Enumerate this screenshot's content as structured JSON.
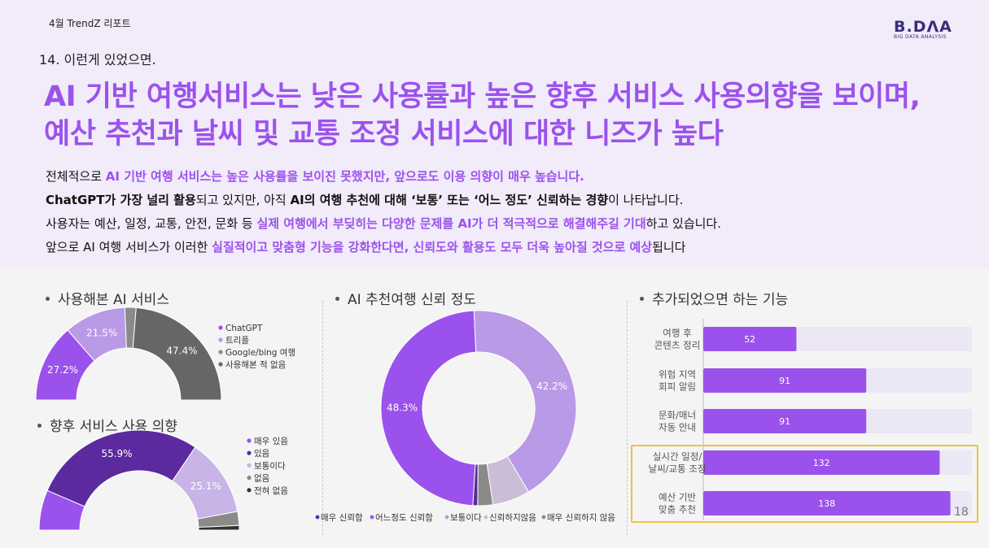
{
  "header": {
    "report_label": "4월 TrendZ 리포트",
    "logo_main": "B.DΛA",
    "logo_sub": "BIG DATA ANALYSIS",
    "section_number": "14. 이런게 있었으면.",
    "headline_line1": "AI 기반 여행서비스는 낮은 사용률과 높은 향후 서비스 사용의향을 보이며,",
    "headline_line2": "예산 추천과 날씨 및 교통 조정 서비스에 대한 니즈가 높다"
  },
  "summary": {
    "line1_a": "전체적으로 ",
    "line1_b": "AI 기반 여행 서비스는 높은 사용률을 보이진 못했지만, 앞으로도 이용 의향이 매우 높습니다.",
    "line2_a": "ChatGPT가 가장 널리 활용",
    "line2_b": "되고 있지만, 아직 ",
    "line2_c": "AI의 여행 추천에 대해 ‘보통’ 또는 ‘어느 정도’ 신뢰하는 경향",
    "line2_d": "이 나타납니다.",
    "line3_a": "사용자는 예산, 일정, 교통, 안전, 문화 등 ",
    "line3_b": "실제 여행에서 부딪히는 다양한 문제를 AI가 더 적극적으로 해결해주길 기대",
    "line3_c": "하고 있습니다.",
    "line4_a": "앞으로 AI 여행 서비스가 이러한 ",
    "line4_b": "실질적이고 맞춤형 기능을 강화한다면, 신뢰도와 활용도 모두 더욱 높아질 것으로 예상",
    "line4_c": "됩니다"
  },
  "panels": {
    "used_services_title": "사용해본 AI 서비스",
    "future_intent_title": "향후 서비스 사용 의향",
    "trust_title": "AI 추천여행 신뢰 정도",
    "features_title": "추가되었으면 하는 기능"
  },
  "page_number": "18",
  "chart_data": [
    {
      "id": "used_services",
      "type": "pie",
      "variant": "half-donut",
      "labels": [
        "ChatGPT",
        "트리플",
        "Google/bing 여행",
        "사용해본 적 없음"
      ],
      "values": [
        27.2,
        21.5,
        3.9,
        47.4
      ],
      "value_labels": [
        "27.2%",
        "21.5%",
        "",
        "47.4%"
      ],
      "colors": [
        "#9b52ec",
        "#b99ae6",
        "#8a8a8a",
        "#666666"
      ],
      "legend_position": "right"
    },
    {
      "id": "future_intent",
      "type": "pie",
      "variant": "half-donut",
      "labels": [
        "매우 있음",
        "있음",
        "보통이다",
        "없음",
        "전혀 없음"
      ],
      "values": [
        13.0,
        55.9,
        25.1,
        4.5,
        1.5
      ],
      "value_labels": [
        "",
        "55.9%",
        "25.1%",
        "",
        ""
      ],
      "colors": [
        "#9b52ec",
        "#5b2a9e",
        "#c8b4e6",
        "#8a8a8a",
        "#333333"
      ],
      "legend_position": "right"
    },
    {
      "id": "trust",
      "type": "pie",
      "variant": "donut",
      "labels": [
        "매우 신뢰함",
        "어느정도 신뢰함",
        "보통이다",
        "신뢰하지않음",
        "매우 신뢰하지 않음"
      ],
      "values": [
        0.8,
        48.3,
        42.2,
        6.2,
        2.5
      ],
      "value_labels": [
        "",
        "48.3%",
        "42.2%",
        "",
        ""
      ],
      "colors": [
        "#5b2a9e",
        "#9b52ec",
        "#b99ae6",
        "#c9bed6",
        "#8a8a8a"
      ],
      "legend_position": "bottom"
    },
    {
      "id": "features",
      "type": "bar",
      "orientation": "horizontal",
      "categories": [
        "여행 후\n콘텐츠 정리",
        "위험 지역\n회피 알림",
        "문화/매너\n자동 안내",
        "실시간 일정/\n날씨/교통 조정",
        "예산 기반\n맞춤 추천"
      ],
      "values": [
        52,
        91,
        91,
        132,
        138
      ],
      "xlim": [
        0,
        150
      ],
      "bar_color": "#9b52ec",
      "track_color": "#ece7f4",
      "highlighted": [
        "실시간 일정/\n날씨/교통 조정",
        "예산 기반\n맞춤 추천"
      ],
      "highlight_color": "#f0c040"
    }
  ]
}
